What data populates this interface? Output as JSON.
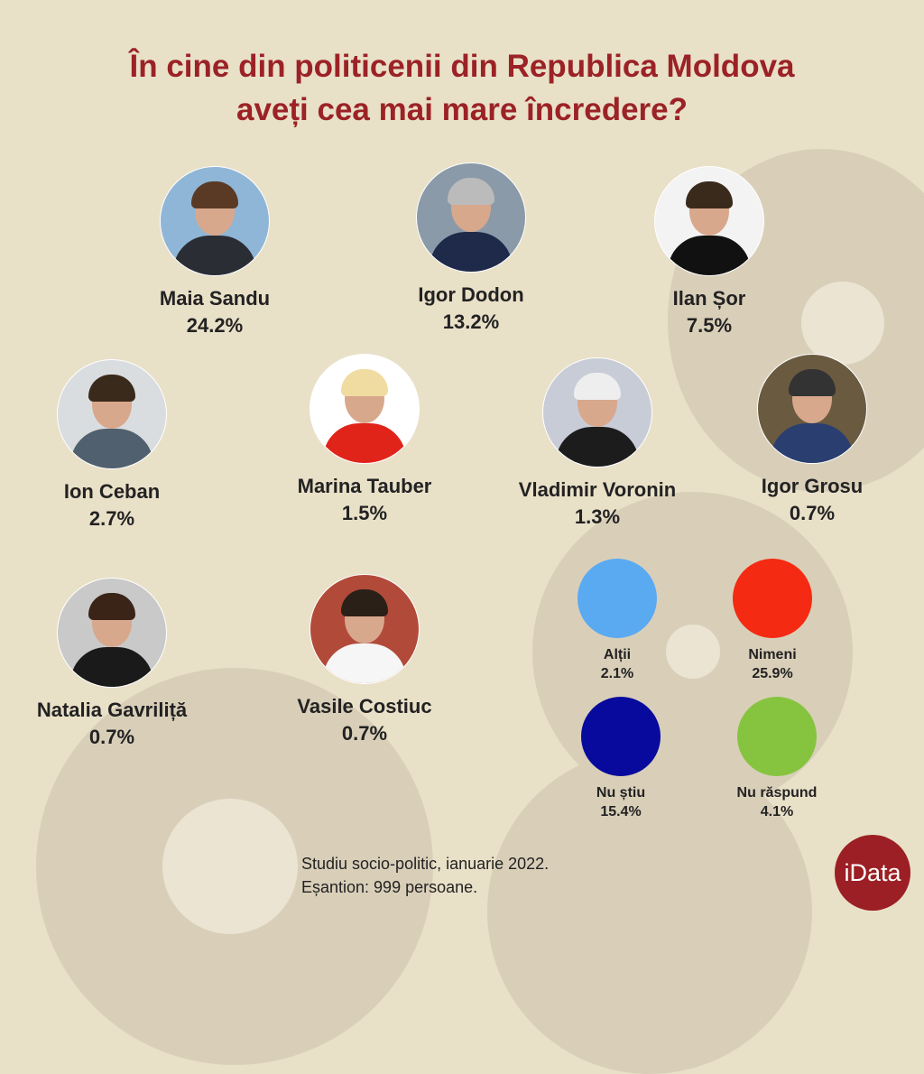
{
  "title_line1": "În cine din politicenii din Republica Moldova",
  "title_line2": "aveți cea mai mare încredere?",
  "chart_data": {
    "type": "table",
    "title": "În cine din politicenii din Republica Moldova aveți cea mai mare încredere?",
    "unit": "%",
    "politicians": [
      {
        "name": "Maia Sandu",
        "value": 24.2,
        "label": "24.2%"
      },
      {
        "name": "Igor Dodon",
        "value": 13.2,
        "label": "13.2%"
      },
      {
        "name": "Ilan Șor",
        "value": 7.5,
        "label": "7.5%"
      },
      {
        "name": "Ion Ceban",
        "value": 2.7,
        "label": "2.7%"
      },
      {
        "name": "Marina Tauber",
        "value": 1.5,
        "label": "1.5%"
      },
      {
        "name": "Vladimir Voronin",
        "value": 1.3,
        "label": "1.3%"
      },
      {
        "name": "Igor Grosu",
        "value": 0.7,
        "label": "0.7%"
      },
      {
        "name": "Natalia Gavriliță",
        "value": 0.7,
        "label": "0.7%"
      },
      {
        "name": "Vasile Costiuc",
        "value": 0.7,
        "label": "0.7%"
      }
    ],
    "other": [
      {
        "name": "Alții",
        "value": 2.1,
        "label": "2.1%",
        "color": "#5aaaf2"
      },
      {
        "name": "Nimeni",
        "value": 25.9,
        "label": "25.9%",
        "color": "#f52a12"
      },
      {
        "name": "Nu știu",
        "value": 15.4,
        "label": "15.4%",
        "color": "#070a9c"
      },
      {
        "name": "Nu răspund",
        "value": 4.1,
        "label": "4.1%",
        "color": "#86c440"
      }
    ]
  },
  "footer_line1": "Studiu socio-politic, ianuarie 2022.",
  "footer_line2": "Eșantion: 999 persoane.",
  "logo": "iData",
  "colors": {
    "title": "#9b2226",
    "background": "#e9e0c8"
  }
}
